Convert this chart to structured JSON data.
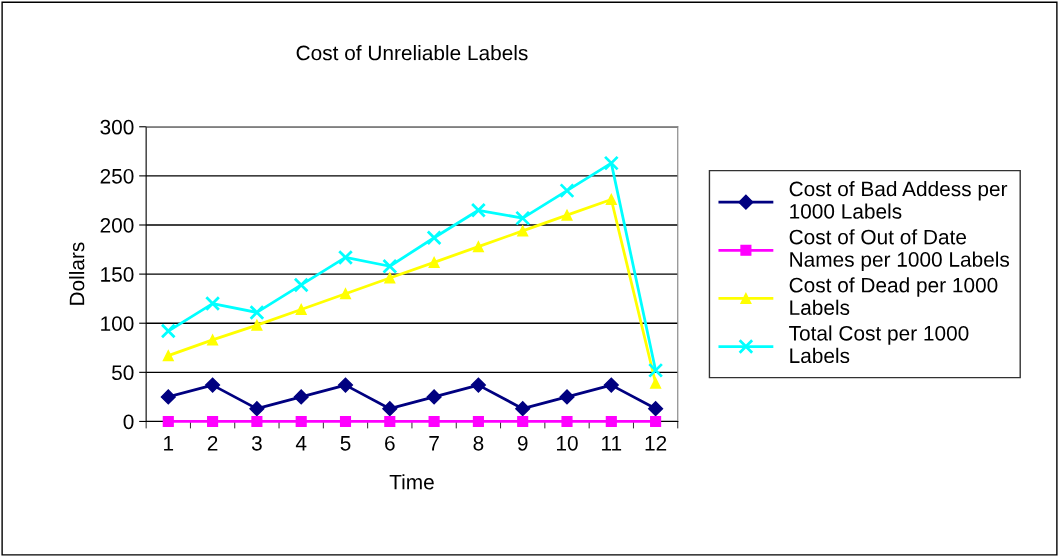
{
  "chart_data": {
    "type": "line",
    "title": "Cost of Unreliable Labels",
    "xlabel": "Time",
    "ylabel": "Dollars",
    "categories": [
      "1",
      "2",
      "3",
      "4",
      "5",
      "6",
      "7",
      "8",
      "9",
      "10",
      "11",
      "12"
    ],
    "ylim": [
      0,
      300
    ],
    "yticks": [
      0,
      50,
      100,
      150,
      200,
      250,
      300
    ],
    "grid": "y",
    "legend": "right",
    "series": [
      {
        "name": "Cost of Bad Addess per 1000 Labels",
        "color": "#000080",
        "marker": "diamond",
        "values": [
          25,
          37,
          13,
          25,
          37,
          13,
          25,
          37,
          13,
          25,
          37,
          13
        ]
      },
      {
        "name": "Cost of Out of Date Names per 1000 Labels",
        "color": "#ff00ff",
        "marker": "square",
        "values": [
          0,
          0,
          0,
          0,
          0,
          0,
          0,
          0,
          0,
          0,
          0,
          0
        ]
      },
      {
        "name": "Cost of Dead per 1000 Labels",
        "color": "#ffff00",
        "marker": "triangle",
        "values": [
          67,
          83,
          98,
          114,
          130,
          146,
          162,
          178,
          194,
          210,
          226,
          39
        ]
      },
      {
        "name": "Total Cost per 1000 Labels",
        "color": "#00ffff",
        "marker": "cross",
        "values": [
          92,
          120,
          111,
          139,
          167,
          158,
          187,
          215,
          207,
          235,
          263,
          52
        ]
      }
    ]
  }
}
